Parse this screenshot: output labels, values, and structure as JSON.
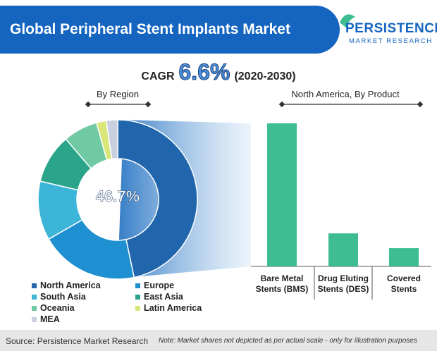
{
  "title": "Global Peripheral Stent Implants Market",
  "logo": {
    "name": "PERSISTENCE",
    "sub": "MARKET RESEARCH"
  },
  "cagr": {
    "label": "CAGR",
    "value": "6.6%",
    "period": "(2020-2030)"
  },
  "chart_data": [
    {
      "type": "donut",
      "title": "By Region",
      "categories": [
        "North America",
        "Europe",
        "South Asia",
        "East Asia",
        "Oceania",
        "Latin America",
        "MEA"
      ],
      "values": [
        46.7,
        20,
        12,
        10,
        7,
        2,
        2.3
      ],
      "value_labels": [
        "46.7%",
        null,
        null,
        null,
        null,
        null,
        null
      ],
      "colors": [
        "#2166ac",
        "#1e8fd0",
        "#3db5d8",
        "#2aa58a",
        "#6fc9a3",
        "#d8e67a",
        "#c8d0e0"
      ]
    },
    {
      "type": "bar",
      "title": "North America, By Product",
      "categories": [
        "Bare Metal Stents (BMS)",
        "Drug Eluting Stents (DES)",
        "Covered Stents"
      ],
      "values": [
        73.6,
        17.0,
        9.4
      ],
      "color": "#3ebd93"
    }
  ],
  "source": "Source: Persistence Market Research",
  "note": "Note: Market shares not depicted as per actual scale - only for illustration purposes"
}
